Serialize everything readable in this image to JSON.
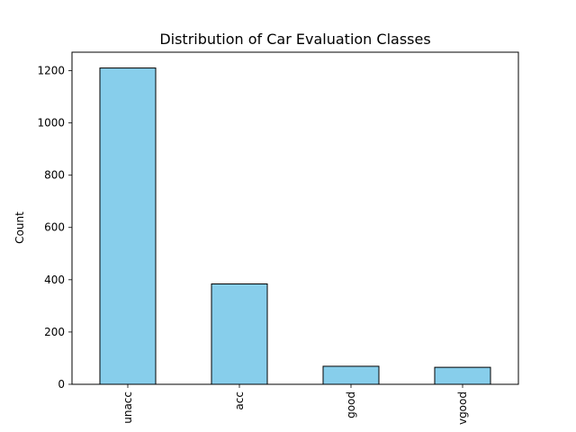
{
  "chart_data": {
    "type": "bar",
    "title": "Distribution of Car Evaluation Classes",
    "xlabel": "",
    "ylabel": "Count",
    "categories": [
      "unacc",
      "acc",
      "good",
      "vgood"
    ],
    "values": [
      1210,
      384,
      69,
      65
    ],
    "ylim": [
      0,
      1270.5
    ],
    "yticks": [
      0,
      200,
      400,
      600,
      800,
      1000,
      1200
    ],
    "bar_color": "#87ceeb",
    "edge_color": "#000000",
    "grid": false,
    "legend": "none"
  }
}
